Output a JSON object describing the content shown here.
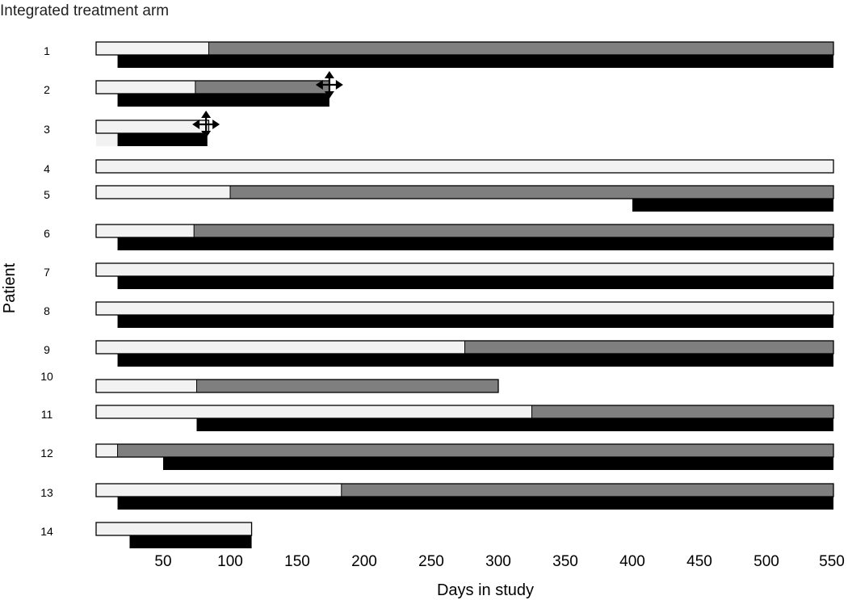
{
  "chart_data": {
    "type": "bar",
    "title": "Integrated treatment arm",
    "xlabel": "Days in study",
    "ylabel": "Patient",
    "xlim": [
      0,
      550
    ],
    "x_ticks": [
      "50",
      "100",
      "150",
      "200",
      "250",
      "300",
      "350",
      "400",
      "450",
      "500",
      "550"
    ],
    "grid": false,
    "legend": "none",
    "colors": {
      "phase_light": "#f2f2f2",
      "phase_gray": "#7f7f7f",
      "lower_black": "#000000",
      "outline": "#000000"
    },
    "patients": [
      {
        "label": "1",
        "upper_light": [
          0,
          84
        ],
        "upper_gray": [
          84,
          550
        ],
        "lower_black": [
          16,
          550
        ],
        "marker": null
      },
      {
        "label": "2",
        "upper_light": [
          0,
          74
        ],
        "upper_gray": [
          74,
          174
        ],
        "lower_black": [
          16,
          174
        ],
        "marker": 174
      },
      {
        "label": "3",
        "upper_light": [
          0,
          84
        ],
        "upper_gray": null,
        "lower_black": [
          16,
          83
        ],
        "lower_light": [
          0,
          16
        ],
        "marker": 82
      },
      {
        "label": "4",
        "upper_light": [
          0,
          550
        ],
        "upper_gray": null,
        "lower_black": null,
        "marker": null
      },
      {
        "label": "5",
        "upper_light": [
          0,
          100
        ],
        "upper_gray": [
          100,
          550
        ],
        "lower_black": [
          400,
          550
        ],
        "marker": null
      },
      {
        "label": "6",
        "upper_light": [
          0,
          73
        ],
        "upper_gray": [
          73,
          550
        ],
        "lower_black": [
          16,
          550
        ],
        "marker": null
      },
      {
        "label": "7",
        "upper_light": [
          0,
          550
        ],
        "upper_gray": null,
        "lower_black": [
          16,
          550
        ],
        "marker": null
      },
      {
        "label": "8",
        "upper_light": [
          0,
          550
        ],
        "upper_gray": null,
        "lower_black": [
          16,
          550
        ],
        "marker": null
      },
      {
        "label": "9",
        "upper_light": [
          0,
          275
        ],
        "upper_gray": [
          275,
          550
        ],
        "lower_black": [
          16,
          550
        ],
        "marker": null
      },
      {
        "label": "10",
        "upper_light": [
          0,
          75
        ],
        "upper_gray": [
          75,
          300
        ],
        "lower_black": null,
        "marker": null
      },
      {
        "label": "11",
        "upper_light": [
          0,
          325
        ],
        "upper_gray": [
          325,
          550
        ],
        "lower_black": [
          75,
          550
        ],
        "marker": null
      },
      {
        "label": "12",
        "upper_light": [
          0,
          16
        ],
        "upper_gray": [
          16,
          550
        ],
        "lower_black": [
          50,
          550
        ],
        "marker": null
      },
      {
        "label": "13",
        "upper_light": [
          0,
          183
        ],
        "upper_gray": [
          183,
          550
        ],
        "lower_black": [
          16,
          550
        ],
        "marker": null
      },
      {
        "label": "14",
        "upper_light": [
          0,
          116
        ],
        "upper_gray": null,
        "lower_black": [
          25,
          116
        ],
        "marker": null
      }
    ]
  }
}
